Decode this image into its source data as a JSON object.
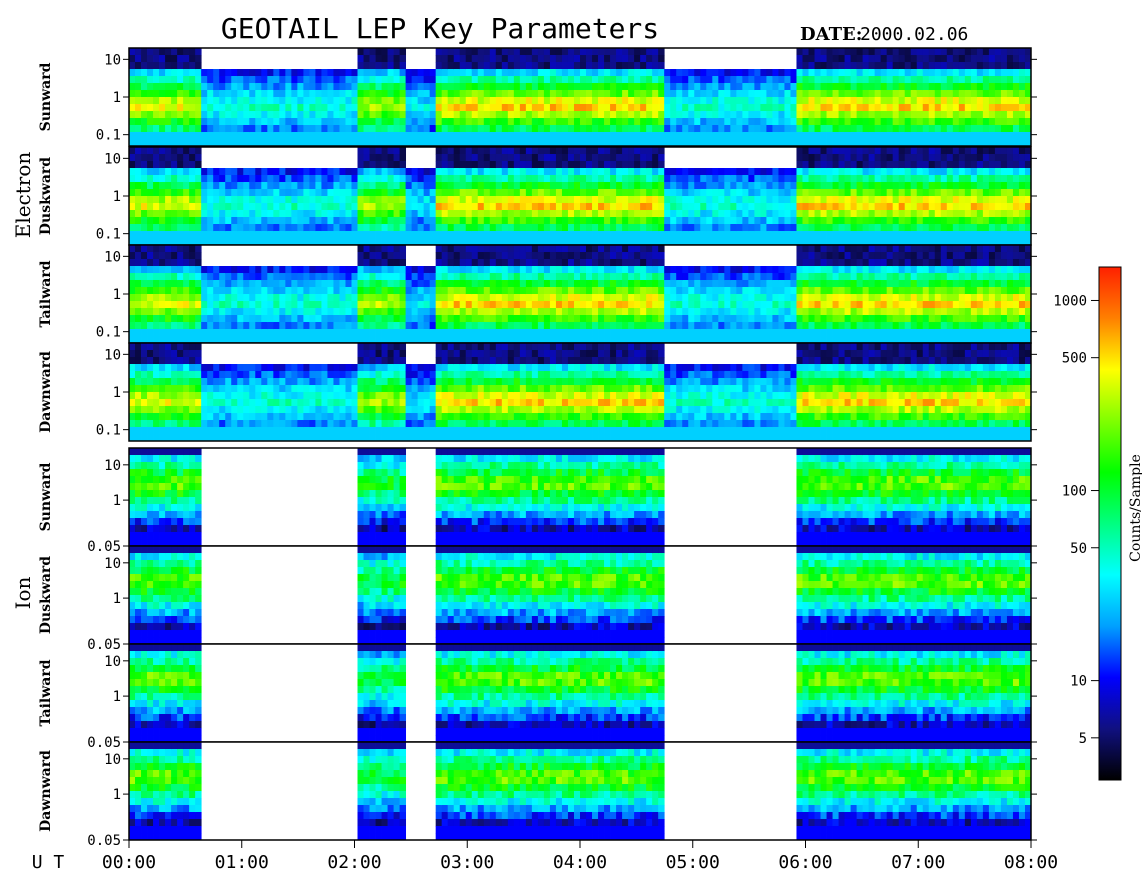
{
  "title": "GEOTAIL LEP Key Parameters",
  "date": {
    "label": "DATE:",
    "value": "2000.02.06"
  },
  "groups": [
    {
      "id": "electron",
      "label": "Electron"
    },
    {
      "id": "ion",
      "label": "Ion"
    }
  ],
  "time_axis": {
    "label": "U T",
    "ticks": [
      "00:00",
      "01:00",
      "02:00",
      "03:00",
      "04:00",
      "05:00",
      "06:00",
      "07:00",
      "08:00"
    ]
  },
  "colorbar": {
    "label": "Counts/Sample",
    "ticks": [
      "1000",
      "500",
      "100",
      "50",
      "10",
      "5"
    ],
    "tick_values": [
      1000,
      500,
      100,
      50,
      10,
      5
    ],
    "range": [
      3,
      1500
    ],
    "scale": "log",
    "colors": [
      "#000000",
      "#101080",
      "#0000ff",
      "#00a0ff",
      "#00ffff",
      "#00ff80",
      "#00ff00",
      "#80ff00",
      "#ffff00",
      "#ff8000",
      "#ff2000"
    ]
  },
  "chart_data": [
    {
      "type": "heatmap",
      "group": "Electron",
      "ylabel": "Sunward",
      "ylim": [
        0.05,
        20
      ],
      "yscale": "log",
      "yticks": [
        "10",
        "1",
        "0.1"
      ],
      "xlim": [
        "00:00",
        "08:00"
      ]
    },
    {
      "type": "heatmap",
      "group": "Electron",
      "ylabel": "Duskward",
      "ylim": [
        0.05,
        20
      ],
      "yscale": "log",
      "yticks": [
        "10",
        "1",
        "0.1"
      ],
      "xlim": [
        "00:00",
        "08:00"
      ]
    },
    {
      "type": "heatmap",
      "group": "Electron",
      "ylabel": "Tailward",
      "ylim": [
        0.05,
        20
      ],
      "yscale": "log",
      "yticks": [
        "10",
        "1",
        "0.1"
      ],
      "xlim": [
        "00:00",
        "08:00"
      ]
    },
    {
      "type": "heatmap",
      "group": "Electron",
      "ylabel": "Dawnward",
      "ylim": [
        0.05,
        20
      ],
      "yscale": "log",
      "yticks": [
        "10",
        "1",
        "0.1"
      ],
      "xlim": [
        "00:00",
        "08:00"
      ]
    },
    {
      "type": "heatmap",
      "group": "Ion",
      "ylabel": "Sunward",
      "ylim": [
        0.05,
        30
      ],
      "yscale": "log",
      "yticks": [
        "10",
        "1",
        "0.05"
      ],
      "xlim": [
        "00:00",
        "08:00"
      ]
    },
    {
      "type": "heatmap",
      "group": "Ion",
      "ylabel": "Duskward",
      "ylim": [
        0.05,
        30
      ],
      "yscale": "log",
      "yticks": [
        "10",
        "1",
        "0.05"
      ],
      "xlim": [
        "00:00",
        "08:00"
      ]
    },
    {
      "type": "heatmap",
      "group": "Ion",
      "ylabel": "Tailward",
      "ylim": [
        0.05,
        30
      ],
      "yscale": "log",
      "yticks": [
        "10",
        "1",
        "0.05"
      ],
      "xlim": [
        "00:00",
        "08:00"
      ]
    },
    {
      "type": "heatmap",
      "group": "Ion",
      "ylabel": "Dawnward",
      "ylim": [
        0.05,
        30
      ],
      "yscale": "log",
      "yticks": [
        "10",
        "1",
        "0.05"
      ],
      "xlim": [
        "00:00",
        "08:00"
      ]
    }
  ]
}
